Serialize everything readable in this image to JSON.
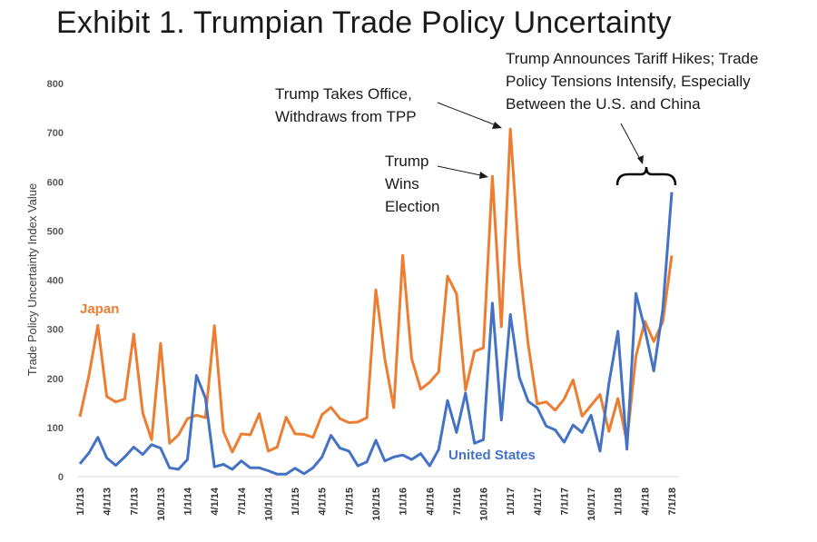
{
  "chart_data": {
    "type": "line",
    "title": "Exhibit 1. Trumpian Trade Policy Uncertainty",
    "xlabel": "",
    "ylabel": "Trade Policy Uncertainty Index Value",
    "ylim": [
      0,
      800
    ],
    "yticks": [
      "0",
      "100",
      "200",
      "300",
      "400",
      "500",
      "600",
      "700",
      "800"
    ],
    "grid": false,
    "x_period": "monthly, Jan 2013 – Jul 2018",
    "xtick_labels": [
      "1/1/13",
      "4/1/13",
      "7/1/13",
      "10/1/13",
      "1/1/14",
      "4/1/14",
      "7/1/14",
      "10/1/14",
      "1/1/15",
      "4/1/15",
      "7/1/15",
      "10/1/15",
      "1/1/16",
      "4/1/16",
      "7/1/16",
      "10/1/16",
      "1/1/17",
      "4/1/17",
      "7/1/17",
      "10/1/17",
      "1/1/18",
      "4/1/18",
      "7/1/18"
    ],
    "series": [
      {
        "name": "Japan",
        "color": "#ED7D31",
        "values": [
          122,
          205,
          308,
          163,
          152,
          158,
          290,
          130,
          75,
          271,
          68,
          85,
          118,
          125,
          120,
          307,
          92,
          50,
          87,
          85,
          128,
          52,
          60,
          121,
          87,
          86,
          80,
          126,
          141,
          118,
          110,
          111,
          120,
          380,
          240,
          140,
          450,
          240,
          178,
          192,
          213,
          408,
          372,
          176,
          255,
          262,
          611,
          305,
          707,
          435,
          268,
          148,
          152,
          135,
          158,
          197,
          123,
          145,
          167,
          92,
          159,
          70,
          245,
          316,
          275,
          315,
          450
        ]
      },
      {
        "name": "United States",
        "color": "#4472C4",
        "values": [
          26,
          48,
          80,
          38,
          23,
          40,
          60,
          45,
          65,
          58,
          18,
          15,
          35,
          206,
          160,
          20,
          25,
          15,
          32,
          18,
          18,
          12,
          5,
          5,
          17,
          6,
          18,
          40,
          84,
          58,
          52,
          22,
          30,
          74,
          32,
          40,
          44,
          35,
          47,
          22,
          55,
          155,
          90,
          170,
          68,
          75,
          353,
          115,
          330,
          202,
          153,
          140,
          103,
          95,
          70,
          105,
          90,
          125,
          52,
          190,
          296,
          56,
          373,
          300,
          215,
          340,
          579
        ]
      }
    ],
    "legend": "inline labels near series",
    "annotations": [
      {
        "lines": [
          "Trump",
          "Wins",
          "Election"
        ]
      },
      {
        "lines": [
          "Trump Takes Office,",
          "Withdraws from TPP"
        ]
      },
      {
        "lines": [
          "Trump Announces Tariff Hikes; Trade",
          "Policy Tensions Intensify, Especially",
          "Between the U.S. and China"
        ]
      }
    ]
  }
}
